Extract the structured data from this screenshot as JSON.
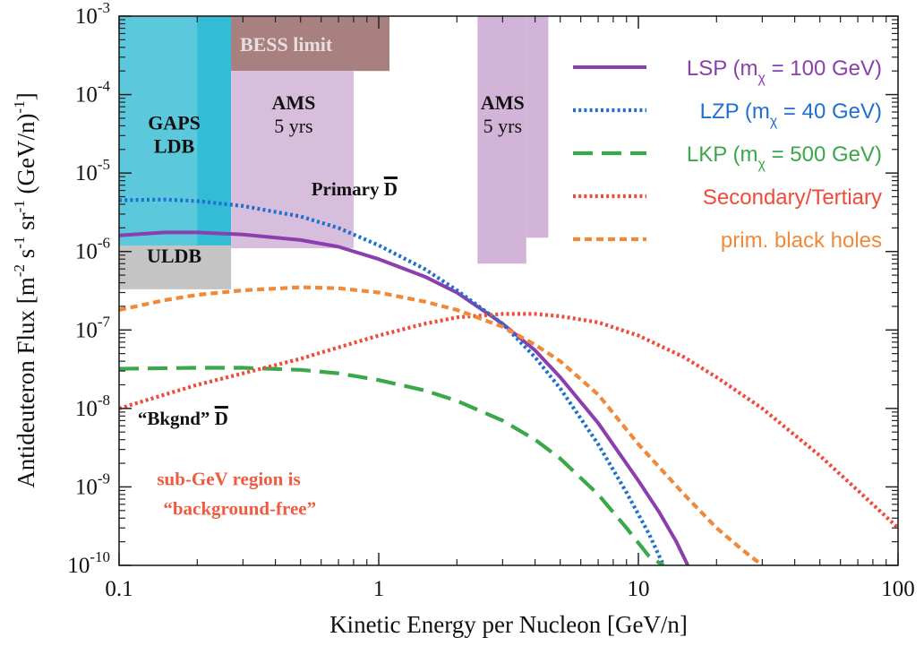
{
  "chart_data": {
    "type": "line",
    "xlabel": "Kinetic Energy per Nucleon [GeV/n]",
    "ylabel_main": "Antideuteron Flux [m",
    "ylabel_parts": [
      "Antideuteron Flux [m",
      "-2",
      " s",
      "-1",
      " sr",
      "-1",
      " (GeV/n)",
      "-1",
      "]"
    ],
    "x_scale": "log",
    "y_scale": "log",
    "xlim": [
      0.1,
      100
    ],
    "ylim": [
      1e-10,
      0.001
    ],
    "x_ticks": [
      {
        "value": 0.1,
        "label": "0.1"
      },
      {
        "value": 1,
        "label": "1"
      },
      {
        "value": 10,
        "label": "10"
      },
      {
        "value": 100,
        "label": "100"
      }
    ],
    "y_ticks": [
      {
        "value": 0.001,
        "mantissa": "10",
        "exp": "-3"
      },
      {
        "value": 0.0001,
        "mantissa": "10",
        "exp": "-4"
      },
      {
        "value": 1e-05,
        "mantissa": "10",
        "exp": "-5"
      },
      {
        "value": 1e-06,
        "mantissa": "10",
        "exp": "-6"
      },
      {
        "value": 1e-07,
        "mantissa": "10",
        "exp": "-7"
      },
      {
        "value": 1e-08,
        "mantissa": "10",
        "exp": "-8"
      },
      {
        "value": 1e-09,
        "mantissa": "10",
        "exp": "-9"
      },
      {
        "value": 1e-10,
        "mantissa": "10",
        "exp": "-10"
      }
    ],
    "regions": [
      {
        "id": "bess",
        "label": "BESS limit",
        "x0": 0.18,
        "x1": 1.1,
        "y0": 0.0002,
        "y1": 0.001,
        "color": "#a88080",
        "text_color": "#e8dede"
      },
      {
        "id": "uldb",
        "label": "ULDB",
        "x0": 0.1,
        "x1": 0.27,
        "y0": 3.3e-07,
        "y1": 1.3e-06,
        "color": "#c4c4c4",
        "text_color": "#111111"
      },
      {
        "id": "gaps-ldb",
        "label": "GAPS|LDB",
        "x0": 0.1,
        "x1": 0.27,
        "y0": 1.2e-06,
        "y1": 0.001,
        "color": "#33bcd6",
        "text_color": "#111111"
      },
      {
        "id": "gaps-ldb-left",
        "label": "",
        "x0": 0.1,
        "x1": 0.2,
        "y0": 1.2e-06,
        "y1": 0.001,
        "color": "#5bc8dc",
        "text_color": "#111111"
      },
      {
        "id": "ams-low",
        "label": "AMS|5 yrs",
        "x0": 0.27,
        "x1": 0.8,
        "y0": 1.1e-06,
        "y1": 0.0002,
        "color": "#d8bedd",
        "text_color": "#111111"
      },
      {
        "id": "ams-high-a",
        "label": "AMS|5 yrs",
        "x0": 2.4,
        "x1": 3.7,
        "y0": 7e-07,
        "y1": 0.001,
        "color": "#d2b4d8",
        "text_color": "#111111"
      },
      {
        "id": "ams-high-b",
        "label": "",
        "x0": 3.7,
        "x1": 4.5,
        "y0": 1.5e-06,
        "y1": 0.001,
        "color": "#d2b4d8",
        "text_color": "#111111"
      }
    ],
    "series": [
      {
        "name": "LSP (m",
        "legend_sub": "χ",
        "legend_rest": " = 100 GeV)",
        "color": "#8b3fae",
        "style": "solid",
        "x": [
          0.1,
          0.15,
          0.2,
          0.3,
          0.5,
          0.7,
          1.0,
          1.5,
          2.0,
          3.0,
          4.0,
          5.0,
          7.0,
          10.0,
          12.0,
          14.0,
          15.5
        ],
        "y": [
          1.6e-06,
          1.75e-06,
          1.75e-06,
          1.65e-06,
          1.4e-06,
          1.15e-06,
          8e-07,
          4.8e-07,
          3e-07,
          1.2e-07,
          5.5e-08,
          2.5e-08,
          6.5e-09,
          1.2e-09,
          4.8e-10,
          2e-10,
          1e-10
        ]
      },
      {
        "name": "LZP (m",
        "legend_sub": "χ",
        "legend_rest": " = 40 GeV)",
        "color": "#1f6fd0",
        "style": "dotted",
        "x": [
          0.1,
          0.15,
          0.2,
          0.3,
          0.5,
          0.7,
          1.0,
          1.5,
          2.0,
          3.0,
          4.0,
          5.0,
          7.0,
          9.0,
          11.0,
          12.5
        ],
        "y": [
          4.5e-06,
          4.6e-06,
          4.4e-06,
          3.8e-06,
          2.8e-06,
          2e-06,
          1.2e-06,
          6e-07,
          3.2e-07,
          1.2e-07,
          4.5e-08,
          1.8e-08,
          3.5e-09,
          8.5e-10,
          2.5e-10,
          1e-10
        ]
      },
      {
        "name": "LKP (m",
        "legend_sub": "χ",
        "legend_rest": " = 500 GeV)",
        "color": "#3aa84a",
        "style": "dashed",
        "x": [
          0.1,
          0.2,
          0.3,
          0.5,
          0.7,
          1.0,
          1.5,
          2.0,
          3.0,
          4.0,
          5.0,
          7.0,
          9.0,
          11.0,
          12.5
        ],
        "y": [
          3.2e-08,
          3.3e-08,
          3.3e-08,
          3.1e-08,
          2.8e-08,
          2.3e-08,
          1.7e-08,
          1.25e-08,
          7e-09,
          4e-09,
          2.3e-09,
          8e-10,
          3e-10,
          1.3e-10,
          1e-10
        ]
      },
      {
        "name": "Secondary/Tertiary",
        "color": "#f04a38",
        "style": "dotted",
        "x": [
          0.1,
          0.15,
          0.2,
          0.3,
          0.5,
          0.7,
          1.0,
          1.5,
          2.0,
          3.0,
          4.0,
          5.0,
          7.0,
          10.0,
          15.0,
          20.0,
          30.0,
          50.0,
          70.0,
          100.0
        ],
        "y": [
          1e-08,
          1.5e-08,
          2e-08,
          2.8e-08,
          4.3e-08,
          6e-08,
          8.5e-08,
          1.2e-07,
          1.45e-07,
          1.6e-07,
          1.6e-07,
          1.5e-07,
          1.25e-07,
          8.5e-08,
          4.5e-08,
          2.5e-08,
          1e-08,
          2.5e-09,
          9e-10,
          3e-10
        ]
      },
      {
        "name": "prim. black holes",
        "color": "#f08a3a",
        "style": "shortdash",
        "x": [
          0.1,
          0.15,
          0.2,
          0.3,
          0.5,
          0.7,
          1.0,
          1.5,
          2.0,
          3.0,
          4.0,
          5.0,
          7.0,
          10.0,
          15.0,
          20.0,
          25.0,
          30.0
        ],
        "y": [
          1.8e-07,
          2.4e-07,
          2.8e-07,
          3.2e-07,
          3.5e-07,
          3.4e-07,
          3e-07,
          2.3e-07,
          1.8e-07,
          1.1e-07,
          6.5e-08,
          4e-08,
          1.5e-08,
          3.5e-09,
          8e-10,
          3e-10,
          1.6e-10,
          1e-10
        ]
      }
    ],
    "legend_position": "top-right",
    "grid": false,
    "annotations": [
      {
        "id": "primary-dbar",
        "text": "Primary ",
        "bar_letter": "D",
        "x": 0.55,
        "y": 5.2e-06,
        "color": "#111111"
      },
      {
        "id": "bkgnd-dbar",
        "text": "“Bkgnd” ",
        "bar_letter": "D",
        "x": 0.118,
        "y": 6.2e-09,
        "color": "#111111"
      },
      {
        "id": "subgev-line1",
        "text": "sub-GeV region is",
        "x": 0.14,
        "y": 1.05e-09,
        "color": "#f05a40"
      },
      {
        "id": "subgev-line2",
        "text": "“background-free”",
        "x": 0.148,
        "y": 4.4e-10,
        "color": "#f05a40"
      }
    ]
  }
}
